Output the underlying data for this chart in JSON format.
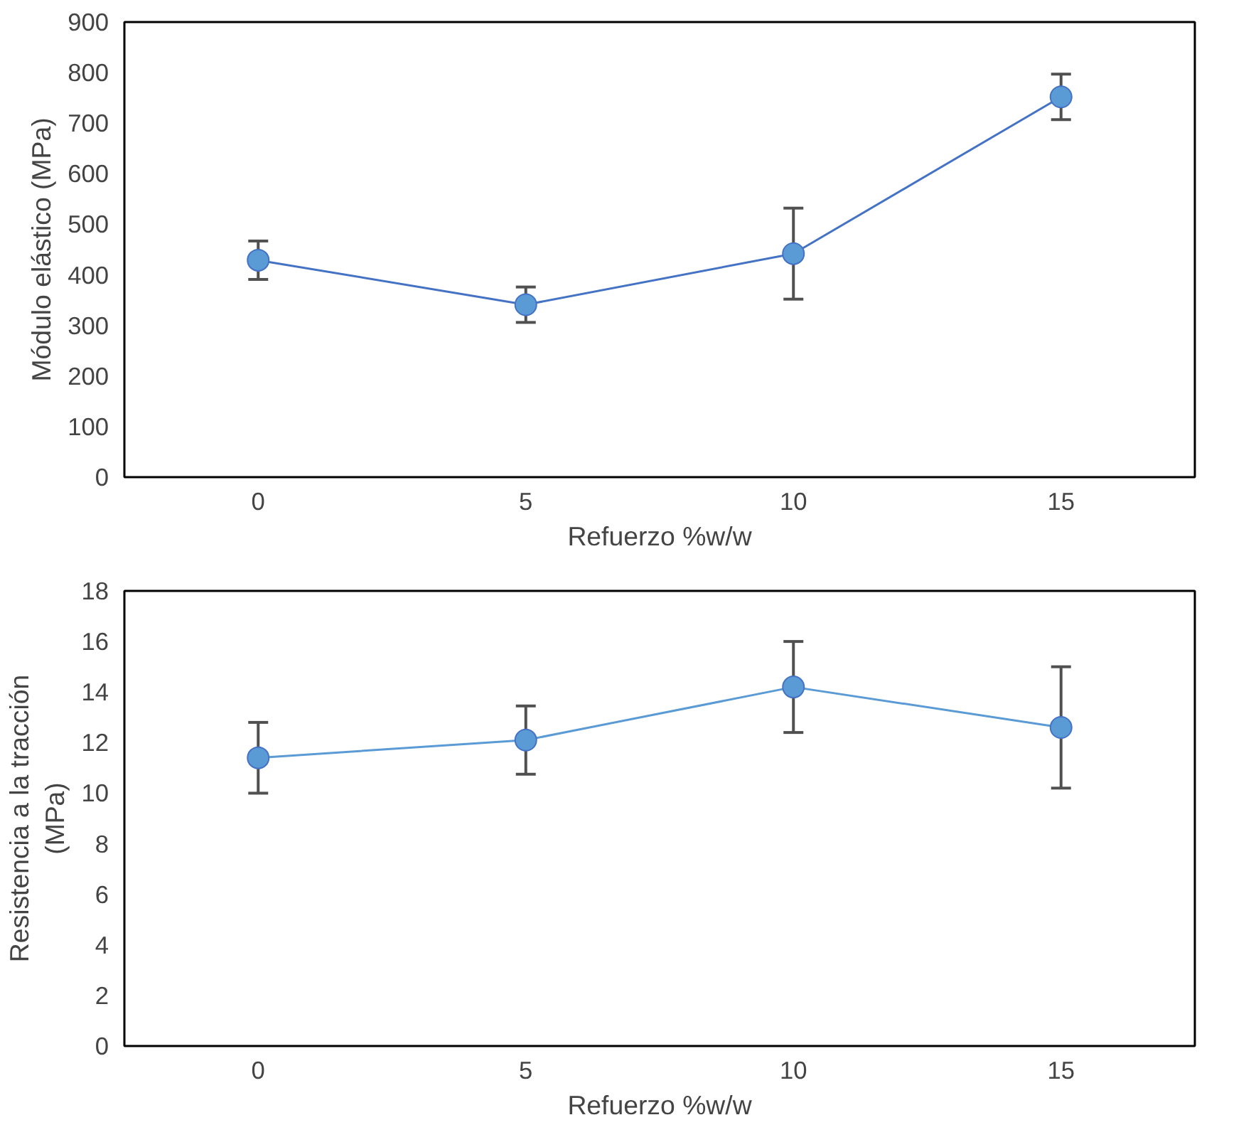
{
  "chart_data": [
    {
      "type": "line",
      "xlabel": "Refuerzo %w/w",
      "ylabel": "Módulo elástico (MPa)",
      "categories": [
        "0",
        "5",
        "10",
        "15"
      ],
      "ylim": [
        0,
        900
      ],
      "yticks": [
        0,
        100,
        200,
        300,
        400,
        500,
        600,
        700,
        800,
        900
      ],
      "grid": false,
      "marker": "circle",
      "line_style": "solid",
      "series": [
        {
          "color": "#4472c4",
          "values": [
            429,
            341,
            442,
            752
          ],
          "errors": [
            38,
            35,
            90,
            45
          ]
        }
      ]
    },
    {
      "type": "line",
      "xlabel": "Refuerzo %w/w",
      "ylabel": "Resistencia a la tracción\n(MPa)",
      "categories": [
        "0",
        "5",
        "10",
        "15"
      ],
      "ylim": [
        0,
        18
      ],
      "yticks": [
        0,
        2,
        4,
        6,
        8,
        10,
        12,
        14,
        16,
        18
      ],
      "grid": false,
      "marker": "circle",
      "line_style": "solid",
      "series": [
        {
          "color": "#5b9bd5",
          "values": [
            11.4,
            12.1,
            14.2,
            12.6
          ],
          "errors": [
            1.4,
            1.35,
            1.8,
            2.4
          ]
        }
      ]
    }
  ]
}
